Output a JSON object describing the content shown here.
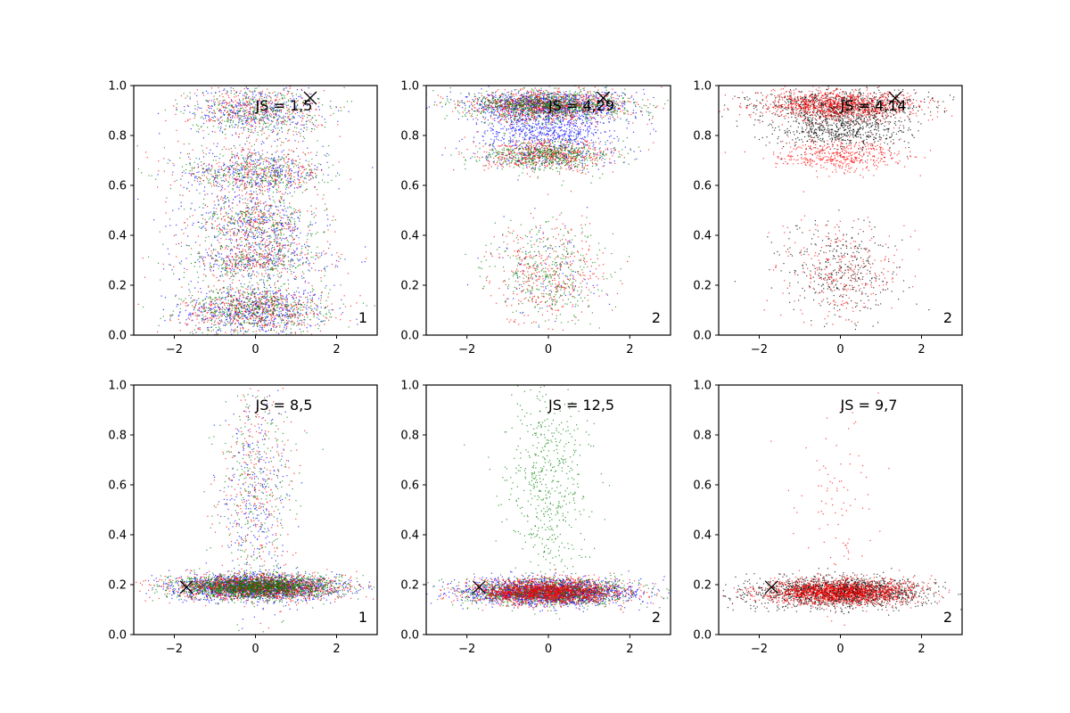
{
  "chart_data": [
    {
      "type": "scatter",
      "annotation": "JS = 1,5",
      "corner_label": "1",
      "xlim": [
        -3,
        3
      ],
      "ylim": [
        0,
        1
      ],
      "xticks": [
        -2,
        0,
        2
      ],
      "yticks": [
        0.0,
        0.2,
        0.4,
        0.6,
        0.8,
        1.0
      ],
      "xtick_labels": [
        "−2",
        "0",
        "2"
      ],
      "ytick_labels": [
        "0.0",
        "0.2",
        "0.4",
        "0.6",
        "0.8",
        "1.0"
      ],
      "marker": {
        "x": 1.35,
        "y": 0.95
      },
      "series": [
        {
          "color": "#0000ff",
          "clusters": [
            {
              "y": 0.1,
              "sy": 0.05,
              "sx": 0.9,
              "w": 0.3
            },
            {
              "y": 0.3,
              "sy": 0.04,
              "sx": 0.9,
              "w": 0.15
            },
            {
              "y": 0.45,
              "sy": 0.05,
              "sx": 0.8,
              "w": 0.15
            },
            {
              "y": 0.65,
              "sy": 0.05,
              "sx": 0.9,
              "w": 0.2
            },
            {
              "y": 0.9,
              "sy": 0.05,
              "sx": 0.8,
              "w": 0.2
            }
          ]
        },
        {
          "color": "#ff0000",
          "clusters": [
            {
              "y": 0.1,
              "sy": 0.05,
              "sx": 0.9,
              "w": 0.3
            },
            {
              "y": 0.3,
              "sy": 0.04,
              "sx": 0.9,
              "w": 0.15
            },
            {
              "y": 0.45,
              "sy": 0.05,
              "sx": 0.8,
              "w": 0.15
            },
            {
              "y": 0.65,
              "sy": 0.05,
              "sx": 0.9,
              "w": 0.2
            },
            {
              "y": 0.9,
              "sy": 0.05,
              "sx": 0.8,
              "w": 0.2
            }
          ]
        },
        {
          "color": "#008000",
          "clusters": [
            {
              "y": 0.1,
              "sy": 0.05,
              "sx": 0.9,
              "w": 0.3
            },
            {
              "y": 0.3,
              "sy": 0.04,
              "sx": 0.9,
              "w": 0.15
            },
            {
              "y": 0.45,
              "sy": 0.05,
              "sx": 0.8,
              "w": 0.15
            },
            {
              "y": 0.65,
              "sy": 0.05,
              "sx": 0.9,
              "w": 0.2
            },
            {
              "y": 0.9,
              "sy": 0.05,
              "sx": 0.8,
              "w": 0.2
            }
          ]
        }
      ]
    },
    {
      "type": "scatter",
      "annotation": "JS = 4,29",
      "corner_label": "2",
      "xlim": [
        -3,
        3
      ],
      "ylim": [
        0,
        1
      ],
      "xticks": [
        -2,
        0,
        2
      ],
      "yticks": [
        0.0,
        0.2,
        0.4,
        0.6,
        0.8,
        1.0
      ],
      "xtick_labels": [
        "−2",
        "0",
        "2"
      ],
      "ytick_labels": [
        "0.0",
        "0.2",
        "0.4",
        "0.6",
        "0.8",
        "1.0"
      ],
      "marker": {
        "x": 1.35,
        "y": 0.95
      },
      "series": [
        {
          "color": "#0000ff",
          "clusters": [
            {
              "y": 0.92,
              "sy": 0.03,
              "sx": 1.0,
              "w": 0.5
            },
            {
              "y": 0.82,
              "sy": 0.04,
              "sx": 0.8,
              "w": 0.35
            },
            {
              "y": 0.72,
              "sy": 0.03,
              "sx": 0.8,
              "w": 0.1
            },
            {
              "y": 0.25,
              "sy": 0.1,
              "sx": 0.7,
              "w": 0.05
            }
          ]
        },
        {
          "color": "#ff0000",
          "clusters": [
            {
              "y": 0.92,
              "sy": 0.03,
              "sx": 1.0,
              "w": 0.5
            },
            {
              "y": 0.72,
              "sy": 0.03,
              "sx": 0.8,
              "w": 0.3
            },
            {
              "y": 0.25,
              "sy": 0.1,
              "sx": 0.7,
              "w": 0.2
            }
          ]
        },
        {
          "color": "#008000",
          "clusters": [
            {
              "y": 0.92,
              "sy": 0.03,
              "sx": 1.0,
              "w": 0.5
            },
            {
              "y": 0.72,
              "sy": 0.03,
              "sx": 0.8,
              "w": 0.3
            },
            {
              "y": 0.25,
              "sy": 0.1,
              "sx": 0.7,
              "w": 0.2
            }
          ]
        }
      ]
    },
    {
      "type": "scatter",
      "annotation": "JS = 4,14",
      "corner_label": "2",
      "xlim": [
        -3,
        3
      ],
      "ylim": [
        0,
        1
      ],
      "xticks": [
        -2,
        0,
        2
      ],
      "yticks": [
        0.0,
        0.2,
        0.4,
        0.6,
        0.8,
        1.0
      ],
      "xtick_labels": [
        "−2",
        "0",
        "2"
      ],
      "ytick_labels": [
        "0.0",
        "0.2",
        "0.4",
        "0.6",
        "0.8",
        "1.0"
      ],
      "marker": {
        "x": 1.35,
        "y": 0.95
      },
      "series": [
        {
          "color": "#000000",
          "clusters": [
            {
              "y": 0.92,
              "sy": 0.03,
              "sx": 1.0,
              "w": 0.45
            },
            {
              "y": 0.82,
              "sy": 0.04,
              "sx": 0.8,
              "w": 0.35
            },
            {
              "y": 0.25,
              "sy": 0.1,
              "sx": 0.7,
              "w": 0.2
            }
          ]
        },
        {
          "color": "#ff0000",
          "clusters": [
            {
              "y": 0.92,
              "sy": 0.03,
              "sx": 1.0,
              "w": 0.6
            },
            {
              "y": 0.72,
              "sy": 0.03,
              "sx": 0.8,
              "w": 0.25
            },
            {
              "y": 0.25,
              "sy": 0.1,
              "sx": 0.7,
              "w": 0.15
            }
          ]
        }
      ]
    },
    {
      "type": "scatter",
      "annotation": "JS = 8,5",
      "corner_label": "1",
      "xlim": [
        -3,
        3
      ],
      "ylim": [
        0,
        1
      ],
      "xticks": [
        -2,
        0,
        2
      ],
      "yticks": [
        0.0,
        0.2,
        0.4,
        0.6,
        0.8,
        1.0
      ],
      "xtick_labels": [
        "−2",
        "0",
        "2"
      ],
      "ytick_labels": [
        "0.0",
        "0.2",
        "0.4",
        "0.6",
        "0.8",
        "1.0"
      ],
      "marker": {
        "x": -1.7,
        "y": 0.19
      },
      "series": [
        {
          "color": "#0000ff",
          "clusters": [
            {
              "y": 0.19,
              "sy": 0.025,
              "sx": 1.0,
              "w": 0.85
            },
            {
              "y": 0.55,
              "sy": 0.22,
              "sx": 0.45,
              "w": 0.15
            }
          ]
        },
        {
          "color": "#ff0000",
          "clusters": [
            {
              "y": 0.19,
              "sy": 0.025,
              "sx": 1.0,
              "w": 0.85
            },
            {
              "y": 0.55,
              "sy": 0.22,
              "sx": 0.45,
              "w": 0.15
            }
          ]
        },
        {
          "color": "#008000",
          "clusters": [
            {
              "y": 0.19,
              "sy": 0.025,
              "sx": 1.0,
              "w": 0.85
            },
            {
              "y": 0.55,
              "sy": 0.22,
              "sx": 0.45,
              "w": 0.15
            }
          ]
        }
      ]
    },
    {
      "type": "scatter",
      "annotation": "JS = 12,5",
      "corner_label": "2",
      "xlim": [
        -3,
        3
      ],
      "ylim": [
        0,
        1
      ],
      "xticks": [
        -2,
        0,
        2
      ],
      "yticks": [
        0.0,
        0.2,
        0.4,
        0.6,
        0.8,
        1.0
      ],
      "xtick_labels": [
        "−2",
        "0",
        "2"
      ],
      "ytick_labels": [
        "0.0",
        "0.2",
        "0.4",
        "0.6",
        "0.8",
        "1.0"
      ],
      "marker": {
        "x": -1.7,
        "y": 0.19
      },
      "series": [
        {
          "color": "#0000ff",
          "clusters": [
            {
              "y": 0.17,
              "sy": 0.025,
              "sx": 1.0,
              "w": 1.0
            }
          ]
        },
        {
          "color": "#008000",
          "clusters": [
            {
              "y": 0.17,
              "sy": 0.025,
              "sx": 1.0,
              "w": 0.7
            },
            {
              "y": 0.6,
              "sy": 0.22,
              "sx": 0.5,
              "w": 0.3
            }
          ]
        },
        {
          "color": "#ff0000",
          "clusters": [
            {
              "y": 0.17,
              "sy": 0.025,
              "sx": 0.9,
              "w": 1.0
            }
          ]
        }
      ]
    },
    {
      "type": "scatter",
      "annotation": "JS = 9,7",
      "corner_label": "2",
      "xlim": [
        -3,
        3
      ],
      "ylim": [
        0,
        1
      ],
      "xticks": [
        -2,
        0,
        2
      ],
      "yticks": [
        0.0,
        0.2,
        0.4,
        0.6,
        0.8,
        1.0
      ],
      "xtick_labels": [
        "−2",
        "0",
        "2"
      ],
      "ytick_labels": [
        "0.0",
        "0.2",
        "0.4",
        "0.6",
        "0.8",
        "1.0"
      ],
      "marker": {
        "x": -1.7,
        "y": 0.19
      },
      "series": [
        {
          "color": "#000000",
          "clusters": [
            {
              "y": 0.17,
              "sy": 0.03,
              "sx": 1.05,
              "w": 1.0
            }
          ]
        },
        {
          "color": "#ff0000",
          "clusters": [
            {
              "y": 0.17,
              "sy": 0.025,
              "sx": 0.95,
              "w": 0.95
            },
            {
              "y": 0.5,
              "sy": 0.2,
              "sx": 0.5,
              "w": 0.05
            }
          ]
        }
      ]
    }
  ]
}
